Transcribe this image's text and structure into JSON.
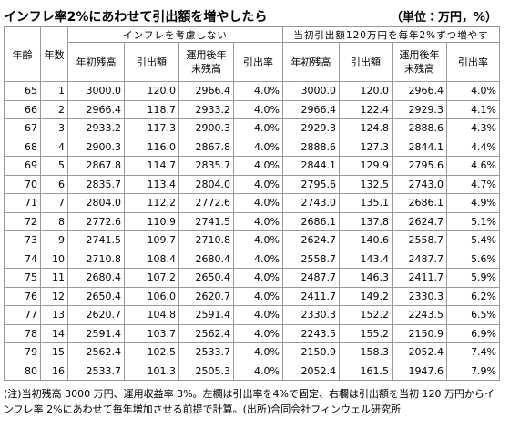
{
  "header": {
    "title": "インフレ率2%にあわせて引出額を増やしたら",
    "unit": "（単位：万円，%）"
  },
  "table": {
    "group_headers": [
      "インフレを考慮しない",
      "当初引出額120万円を毎年2%ずつ増やす"
    ],
    "columns": [
      "年齢",
      "年数",
      "年初残高",
      "引出額",
      "運用後年末残高",
      "引出率",
      "年初残高",
      "引出額",
      "運用後年末残高",
      "引出率"
    ],
    "rows": [
      [
        "65",
        "1",
        "3000.0",
        "120.0",
        "2966.4",
        "4.0%",
        "3000.0",
        "120.0",
        "2966.4",
        "4.0%"
      ],
      [
        "66",
        "2",
        "2966.4",
        "118.7",
        "2933.2",
        "4.0%",
        "2966.4",
        "122.4",
        "2929.3",
        "4.1%"
      ],
      [
        "67",
        "3",
        "2933.2",
        "117.3",
        "2900.3",
        "4.0%",
        "2929.3",
        "124.8",
        "2888.6",
        "4.3%"
      ],
      [
        "68",
        "4",
        "2900.3",
        "116.0",
        "2867.8",
        "4.0%",
        "2888.6",
        "127.3",
        "2844.1",
        "4.4%"
      ],
      [
        "69",
        "5",
        "2867.8",
        "114.7",
        "2835.7",
        "4.0%",
        "2844.1",
        "129.9",
        "2795.6",
        "4.6%"
      ],
      [
        "70",
        "6",
        "2835.7",
        "113.4",
        "2804.0",
        "4.0%",
        "2795.6",
        "132.5",
        "2743.0",
        "4.7%"
      ],
      [
        "71",
        "7",
        "2804.0",
        "112.2",
        "2772.6",
        "4.0%",
        "2743.0",
        "135.1",
        "2686.1",
        "4.9%"
      ],
      [
        "72",
        "8",
        "2772.6",
        "110.9",
        "2741.5",
        "4.0%",
        "2686.1",
        "137.8",
        "2624.7",
        "5.1%"
      ],
      [
        "73",
        "9",
        "2741.5",
        "109.7",
        "2710.8",
        "4.0%",
        "2624.7",
        "140.6",
        "2558.7",
        "5.4%"
      ],
      [
        "74",
        "10",
        "2710.8",
        "108.4",
        "2680.4",
        "4.0%",
        "2558.7",
        "143.4",
        "2487.7",
        "5.6%"
      ],
      [
        "75",
        "11",
        "2680.4",
        "107.2",
        "2650.4",
        "4.0%",
        "2487.7",
        "146.3",
        "2411.7",
        "5.9%"
      ],
      [
        "76",
        "12",
        "2650.4",
        "106.0",
        "2620.7",
        "4.0%",
        "2411.7",
        "149.2",
        "2330.3",
        "6.2%"
      ],
      [
        "77",
        "13",
        "2620.7",
        "104.8",
        "2591.4",
        "4.0%",
        "2330.3",
        "152.2",
        "2243.5",
        "6.5%"
      ],
      [
        "78",
        "14",
        "2591.4",
        "103.7",
        "2562.4",
        "4.0%",
        "2243.5",
        "155.2",
        "2150.9",
        "6.9%"
      ],
      [
        "79",
        "15",
        "2562.4",
        "102.5",
        "2533.7",
        "4.0%",
        "2150.9",
        "158.3",
        "2052.4",
        "7.4%"
      ],
      [
        "80",
        "16",
        "2533.7",
        "101.3",
        "2505.3",
        "4.0%",
        "2052.4",
        "161.5",
        "1947.6",
        "7.9%"
      ]
    ]
  },
  "note": "(注)当初残高 3000 万円、運用収益率 3%。左欄は引出率を4%で固定、右欄は引出額を当初 120 万円からインフレ率 2%にあわせて毎年増加させる前提で計算。(出所)合同会社フィンウェル研究所"
}
